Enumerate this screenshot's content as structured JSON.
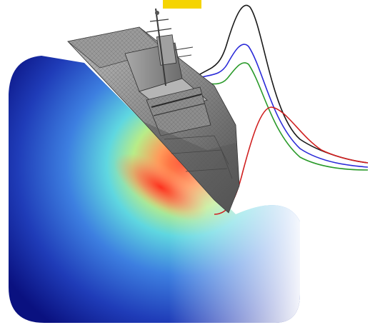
{
  "colors": {
    "background": "#ffffff",
    "field_deep": "#0a1180",
    "field_mid": "#3b6fd6",
    "field_cyan": "#5fd7e0",
    "field_green": "#9de37a",
    "field_hot": "#ff3b22",
    "hull_dark": "#3a3a3a",
    "hull_mid": "#8a8a8a",
    "hull_light": "#cfcfcf",
    "curve_black": "#1a1a1a",
    "curve_blue": "#2b2bd8",
    "curve_green": "#2a9a2a",
    "curve_red": "#d02020",
    "yellow_tab": "#f5d400"
  },
  "figure": {
    "elements": [
      {
        "name": "pressure-field-panel",
        "kind": "heatmap-gradient"
      },
      {
        "name": "ship-hull",
        "kind": "3d-wireframe-model"
      },
      {
        "name": "response-curves",
        "kind": "line-curves",
        "series": [
          "black",
          "blue",
          "green",
          "red"
        ]
      },
      {
        "name": "yellow-tab",
        "kind": "decorative-mark"
      }
    ]
  }
}
